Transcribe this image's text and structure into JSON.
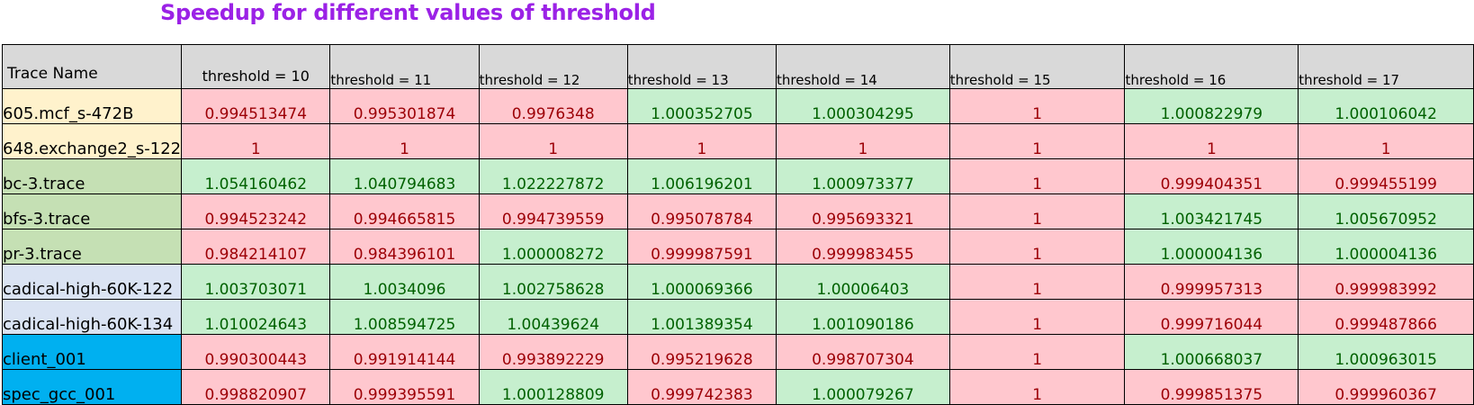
{
  "title": "Speedup for different values of threshold",
  "colors": {
    "title": "#9b22e6",
    "header_bg": "#d9d9d9",
    "good_bg": "#c6efce",
    "good_text": "#006100",
    "bad_bg": "#ffc7ce",
    "bad_text": "#9c0006"
  },
  "headers": [
    "Trace Name",
    "threshold = 10",
    "threshold = 11",
    "threshold = 12",
    "threshold = 13",
    "threshold = 14",
    "threshold = 15",
    "threshold = 16",
    "threshold = 17"
  ],
  "rows": [
    {
      "name": "605.mcf_s-472B",
      "name_bg": "#fff2cc",
      "values": [
        "0.994513474",
        "0.995301874",
        "0.9976348",
        "1.000352705",
        "1.000304295",
        "1",
        "1.000822979",
        "1.000106042"
      ]
    },
    {
      "name": "648.exchange2_s-122",
      "name_bg": "#fff2cc",
      "values": [
        "1",
        "1",
        "1",
        "1",
        "1",
        "1",
        "1",
        "1"
      ]
    },
    {
      "name": "bc-3.trace",
      "name_bg": "#c5e0b4",
      "values": [
        "1.054160462",
        "1.040794683",
        "1.022227872",
        "1.006196201",
        "1.000973377",
        "1",
        "0.999404351",
        "0.999455199"
      ]
    },
    {
      "name": "bfs-3.trace",
      "name_bg": "#c5e0b4",
      "values": [
        "0.994523242",
        "0.994665815",
        "0.994739559",
        "0.995078784",
        "0.995693321",
        "1",
        "1.003421745",
        "1.005670952"
      ]
    },
    {
      "name": "pr-3.trace",
      "name_bg": "#c5e0b4",
      "values": [
        "0.984214107",
        "0.984396101",
        "1.000008272",
        "0.999987591",
        "0.999983455",
        "1",
        "1.000004136",
        "1.000004136"
      ]
    },
    {
      "name": "cadical-high-60K-122",
      "name_bg": "#dae3f3",
      "values": [
        "1.003703071",
        "1.0034096",
        "1.002758628",
        "1.000069366",
        "1.00006403",
        "1",
        "0.999957313",
        "0.999983992"
      ]
    },
    {
      "name": "cadical-high-60K-134",
      "name_bg": "#dae3f3",
      "values": [
        "1.010024643",
        "1.008594725",
        "1.00439624",
        "1.001389354",
        "1.001090186",
        "1",
        "0.999716044",
        "0.999487866"
      ]
    },
    {
      "name": "client_001",
      "name_bg": "#00b0f0",
      "values": [
        "0.990300443",
        "0.991914144",
        "0.993892229",
        "0.995219628",
        "0.998707304",
        "1",
        "1.000668037",
        "1.000963015"
      ]
    },
    {
      "name": "spec_gcc_001",
      "name_bg": "#00b0f0",
      "values": [
        "0.998820907",
        "0.999395591",
        "1.000128809",
        "0.999742383",
        "1.000079267",
        "1",
        "0.999851375",
        "0.999960367"
      ]
    }
  ]
}
